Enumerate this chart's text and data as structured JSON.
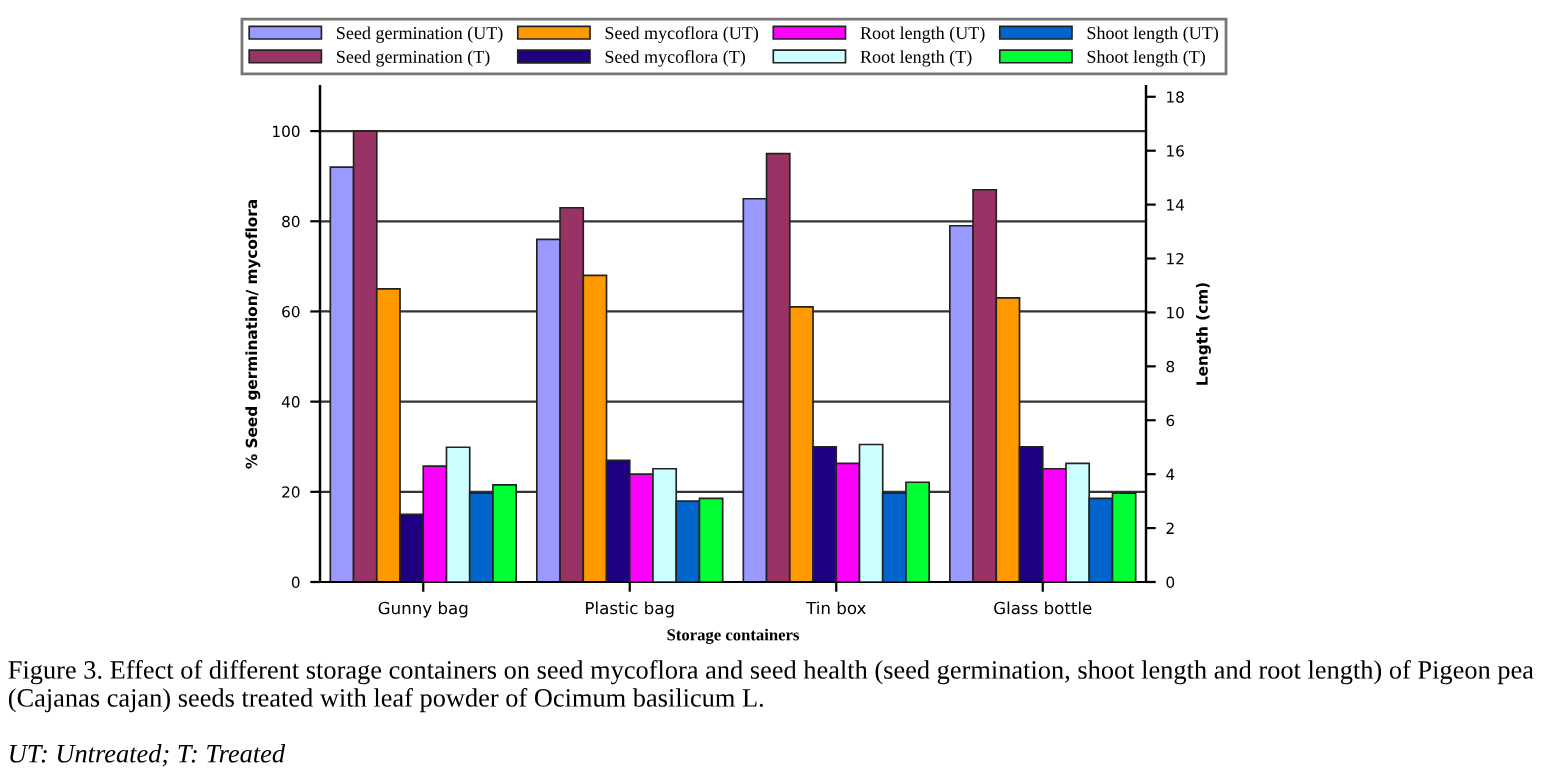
{
  "chart_data": {
    "type": "bar",
    "categories": [
      "Gunny bag",
      "Plastic bag",
      "Tin box",
      "Glass bottle"
    ],
    "series": [
      {
        "name": "Seed germination (UT)",
        "color": "#9999ff",
        "values": [
          92,
          76,
          85,
          79
        ]
      },
      {
        "name": "Seed germination (T)",
        "color": "#993366",
        "values": [
          100,
          83,
          95,
          87
        ]
      },
      {
        "name": "Seed mycoflora (UT)",
        "color": "#ff9900",
        "values": [
          65,
          68,
          61,
          63
        ]
      },
      {
        "name": "Seed mycoflora (T)",
        "color": "#1f0080",
        "values": [
          15,
          27,
          30,
          30
        ]
      },
      {
        "name": "Root length (UT)",
        "color": "#ff00ff",
        "axis": "y2",
        "values": [
          4.3,
          4.0,
          4.4,
          4.2
        ]
      },
      {
        "name": "Root length (T)",
        "color": "#ccffff",
        "axis": "y2",
        "values": [
          5.0,
          4.2,
          5.1,
          4.4
        ]
      },
      {
        "name": "Shoot length (UT)",
        "color": "#0066cc",
        "axis": "y2",
        "values": [
          3.3,
          3.0,
          3.3,
          3.1
        ]
      },
      {
        "name": "Shoot length (T)",
        "color": "#00ff33",
        "axis": "y2",
        "values": [
          3.6,
          3.1,
          3.7,
          3.3
        ]
      }
    ],
    "xlabel": "Storage containers",
    "ylabel": "% Seed germination/ mycoflora",
    "y2label": "Length (cm)",
    "ylim": [
      0,
      110
    ],
    "yticks": [
      0,
      20,
      40,
      60,
      80,
      100
    ],
    "y2lim": [
      0,
      18.4
    ],
    "y2ticks": [
      0,
      2,
      4,
      6,
      8,
      10,
      12,
      14,
      16,
      18
    ],
    "grid": "y",
    "legend": "top",
    "annotations": [
      "Figure 3. Effect of different storage containers on seed mycoflora and seed health (seed germination, shoot length and root length) of Pigeon pea (Cajanas cajan) seeds treated with leaf powder of Ocimum basilicum L.",
      "UT: Untreated; T: Treated"
    ]
  }
}
